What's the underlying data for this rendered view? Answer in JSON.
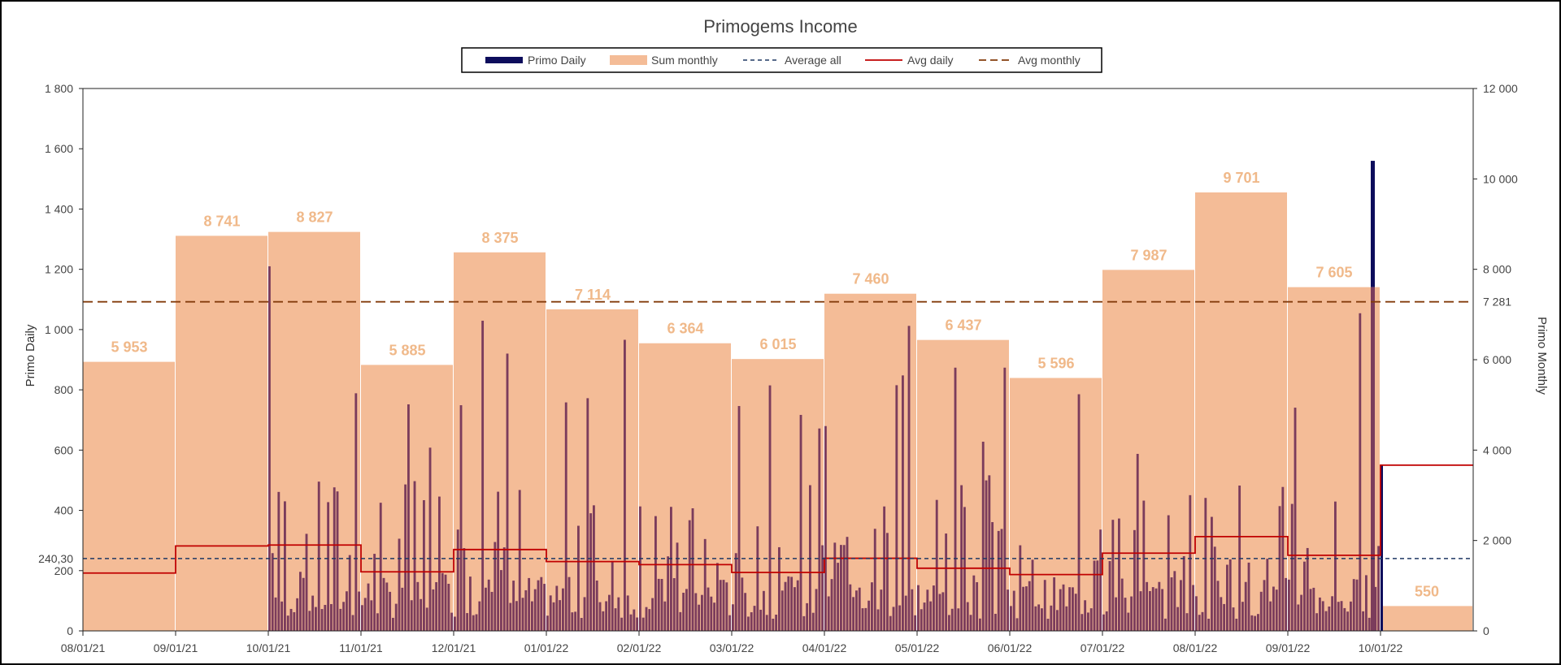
{
  "chart_data": {
    "type": "bar",
    "title": "Primogems Income",
    "ylabel": "Primo Daily",
    "y2label": "Primo Monthly",
    "ylim": [
      0,
      1800
    ],
    "y2lim": [
      0,
      12000
    ],
    "yticks": [
      "0",
      "200",
      "400",
      "600",
      "800",
      "1 000",
      "1 200",
      "1 400",
      "1 600",
      "1 800"
    ],
    "y2ticks": [
      "0",
      "2 000",
      "4 000",
      "6 000",
      "8 000",
      "10 000",
      "12 000"
    ],
    "x_dates": [
      "08/01/21",
      "09/01/21",
      "10/01/21",
      "11/01/21",
      "12/01/21",
      "01/01/22",
      "02/01/22",
      "03/01/22",
      "04/01/22",
      "05/01/22",
      "06/01/22",
      "07/01/22",
      "08/01/22",
      "09/01/22",
      "10/01/22"
    ],
    "legend": {
      "primo_daily": "Primo Daily",
      "sum_monthly": "Sum monthly",
      "average_all": "Average all",
      "avg_daily": "Avg daily",
      "avg_monthly": "Avg monthly"
    },
    "sum_monthly": {
      "values": [
        5953,
        8741,
        8827,
        5885,
        8375,
        7114,
        6364,
        6015,
        7460,
        6437,
        5596,
        7987,
        9701,
        7605,
        550
      ],
      "labels": [
        "5 953",
        "8 741",
        "8 827",
        "5 885",
        "8 375",
        "7 114",
        "6 364",
        "6 015",
        "7 460",
        "6 437",
        "5 596",
        "7 987",
        "9 701",
        "7 605",
        "550"
      ]
    },
    "avg_daily": [
      192,
      282,
      285,
      196,
      270,
      230,
      220,
      194,
      241,
      208,
      187,
      258,
      313,
      251,
      550
    ],
    "average_all": 240.3,
    "average_all_label": "240,30",
    "avg_monthly": 7281,
    "avg_monthly_label": "7 281",
    "colors": {
      "primo_daily": "#0d0d5c",
      "sum_monthly": "#f4bc97",
      "overlap": "#7b3c5c",
      "average_all": "#1f3864",
      "avg_daily": "#c00000",
      "avg_monthly": "#843c0c"
    }
  }
}
